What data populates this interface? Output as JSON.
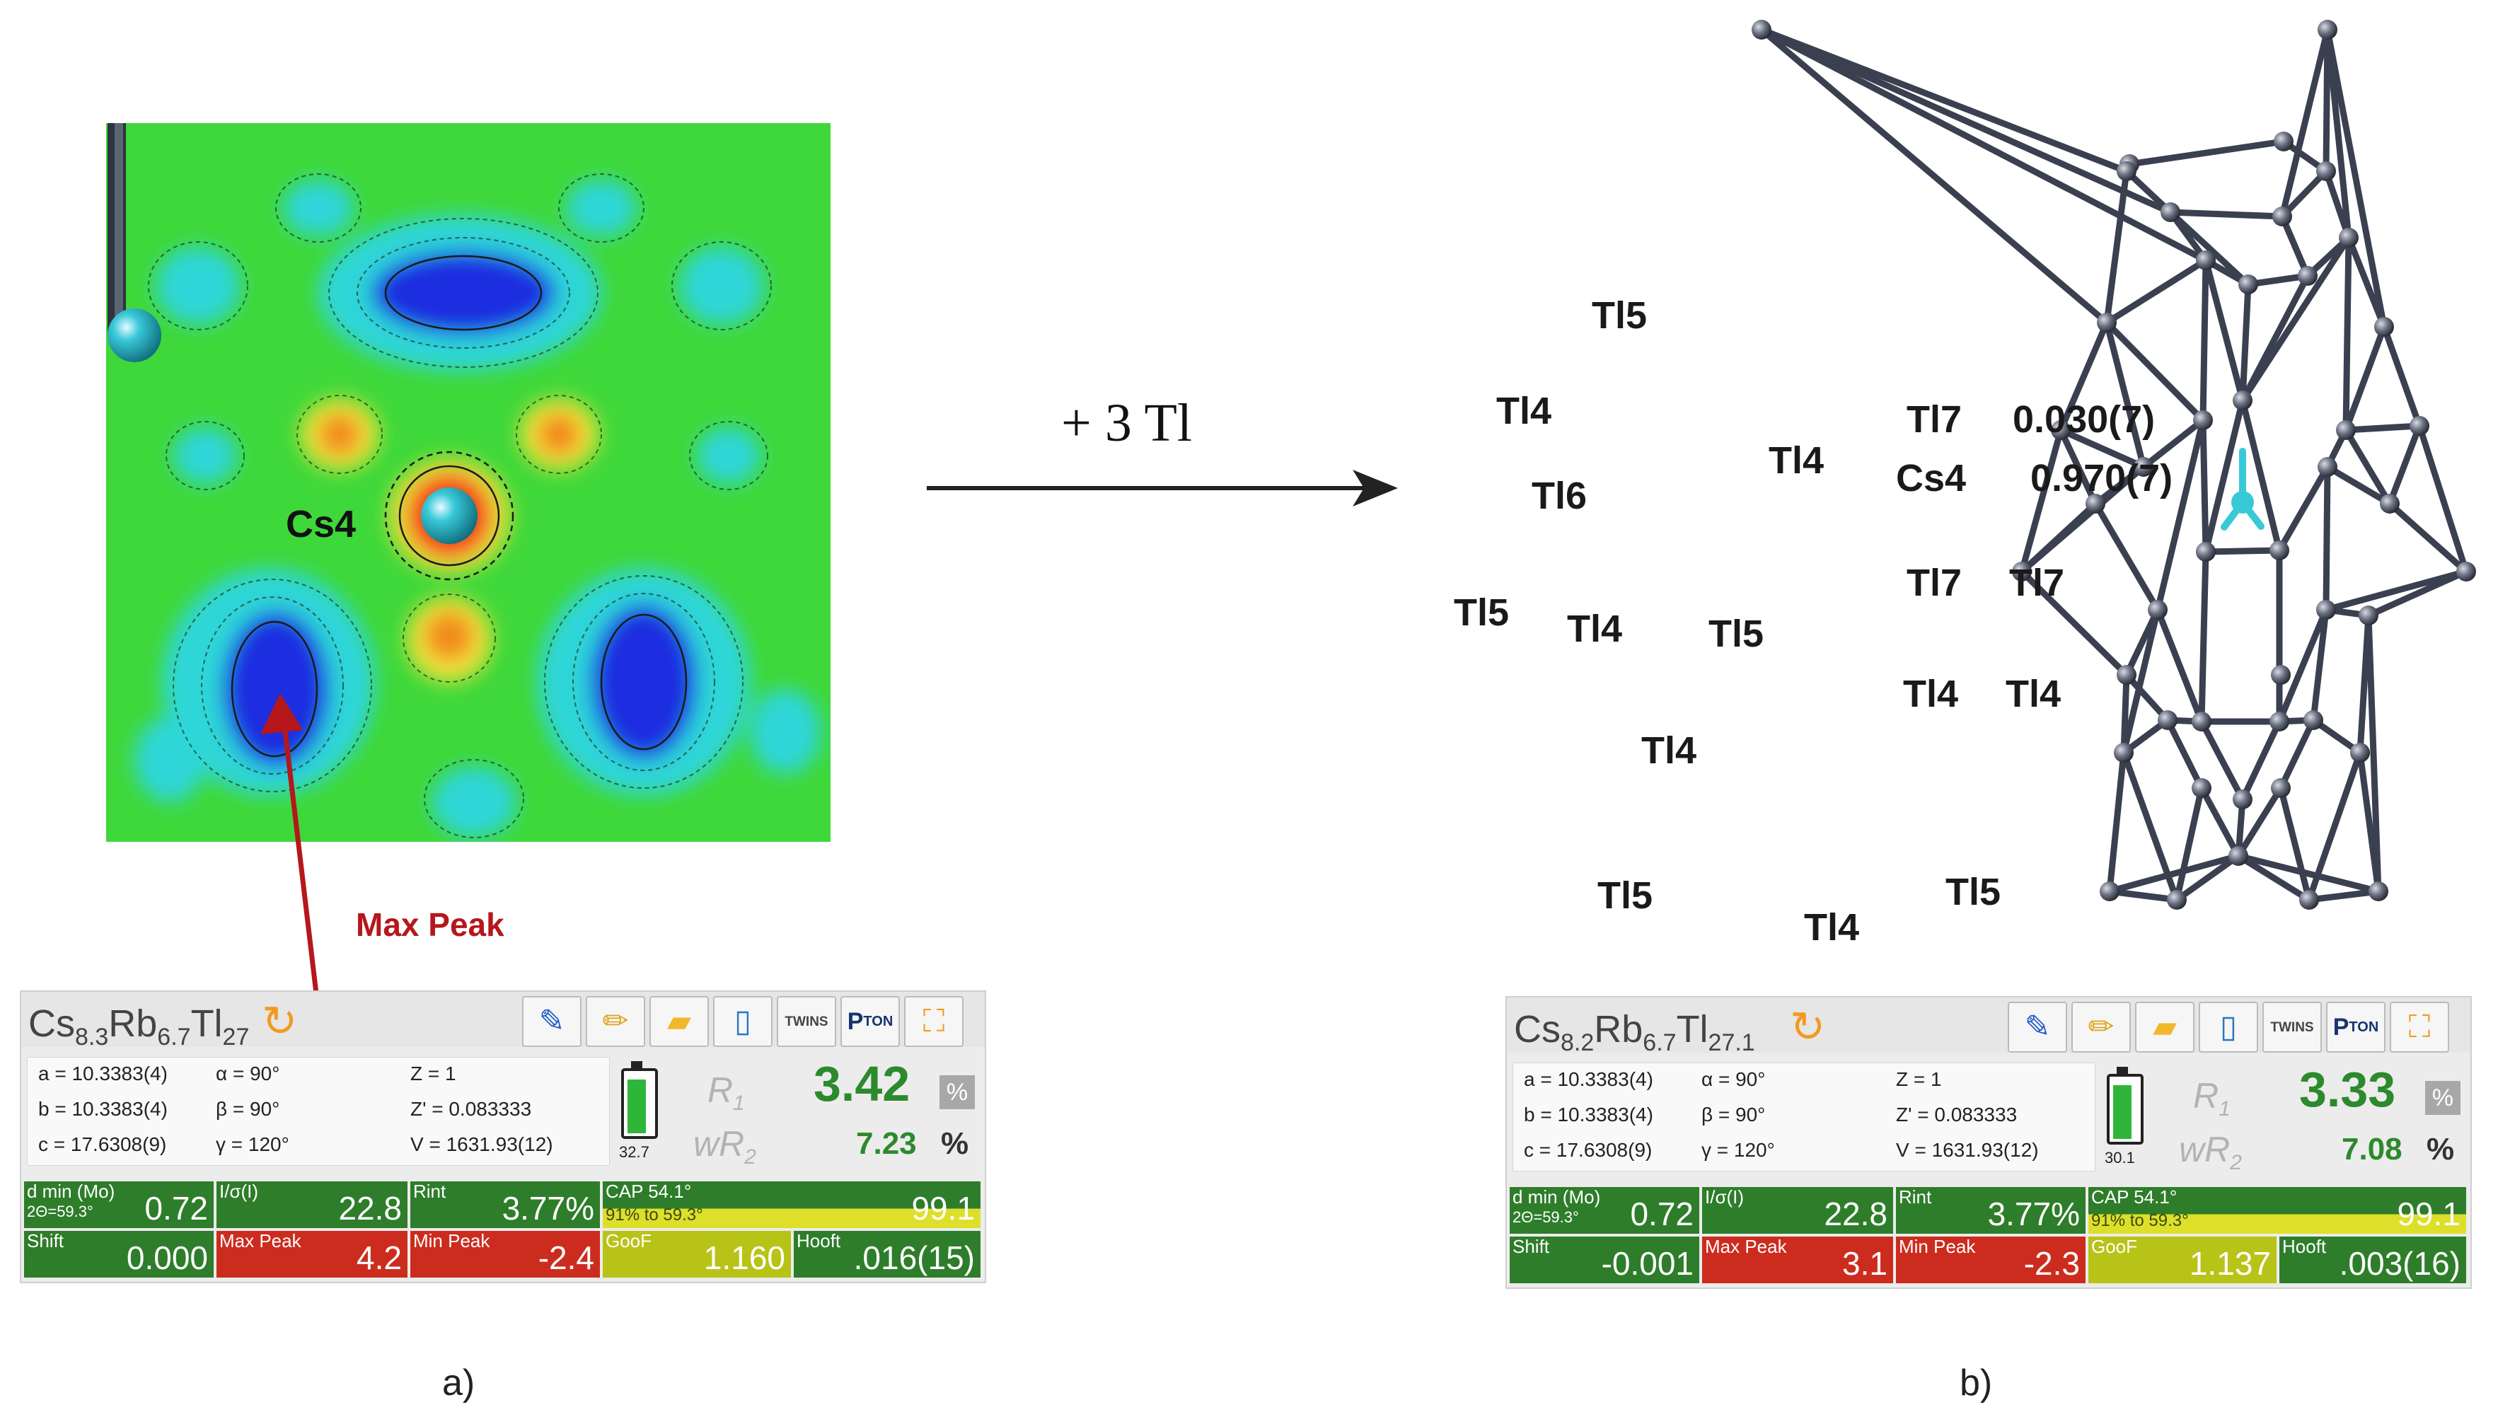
{
  "reaction": {
    "label": "+ 3 Tl"
  },
  "captions": {
    "a": "a)",
    "b": "b)"
  },
  "map": {
    "atom_label": "Cs4",
    "arrow_label": "Max Peak"
  },
  "cluster": {
    "labels": {
      "tl5_top": "Tl5",
      "tl4_left": "Tl4",
      "tl6": "Tl6",
      "tl5_left": "Tl5",
      "tl4_left2": "Tl4",
      "tl5_mid": "Tl5",
      "tl4_inner": "Tl4",
      "tl7_top": "Tl7",
      "occ_tl7": "0.030(7)",
      "cs4": "Cs4",
      "occ_cs4": "0.970(7)",
      "tl7_left": "Tl7",
      "tl7_right": "Tl7",
      "tl4_bl": "Tl4",
      "tl4_br": "Tl4",
      "tl4_lower": "Tl4",
      "tl5_bottom_left": "Tl5",
      "tl4_bottom": "Tl4",
      "tl5_bottom": "Tl5"
    }
  },
  "panels": {
    "a": {
      "formula": {
        "cs": "Cs",
        "cs_n": "8.3",
        "rb": "Rb",
        "rb_n": "6.7",
        "tl": "Tl",
        "tl_n": "27"
      },
      "toolbar": {
        "twins": "TWINS",
        "pton": "P",
        "pton_sub": "TON"
      },
      "cell": {
        "a": "a = 10.3383(4)",
        "b": "b = 10.3383(4)",
        "c": "c = 17.6308(9)",
        "alpha": "α = 90°",
        "beta": "β = 90°",
        "gamma": "γ = 120°",
        "z": "Z = 1",
        "zprime": "Z' = 0.083333",
        "v": "V = 1631.93(12)"
      },
      "battery_value": "32.7",
      "r1": {
        "label": "R",
        "sub": "1",
        "value": "3.42",
        "unit": "%"
      },
      "wr2": {
        "label": "wR",
        "sub": "2",
        "value": "7.23",
        "unit": "%"
      },
      "stats": {
        "dmin_k": "d min (Mo)",
        "dmin_k2": "2Θ=59.3°",
        "dmin_v": "0.72",
        "isig_k": "I/σ(I)",
        "isig_v": "22.8",
        "rint_k": "Rint",
        "rint_v": "3.77%",
        "cap_k": "CAP 54.1°",
        "cap_k2": "91% to 59.3°",
        "cap_v": "99.1",
        "shift_k": "Shift",
        "shift_v": "0.000",
        "maxpeak_k": "Max Peak",
        "maxpeak_v": "4.2",
        "minpeak_k": "Min Peak",
        "minpeak_v": "-2.4",
        "goof_k": "GooF",
        "goof_v": "1.160",
        "hooft_k": "Hooft",
        "hooft_v": ".016(15)"
      },
      "battery_level": 0.9
    },
    "b": {
      "formula": {
        "cs": "Cs",
        "cs_n": "8.2",
        "rb": "Rb",
        "rb_n": "6.7",
        "tl": "Tl",
        "tl_n": "27.1"
      },
      "toolbar": {
        "twins": "TWINS",
        "pton": "P",
        "pton_sub": "TON"
      },
      "cell": {
        "a": "a = 10.3383(4)",
        "b": "b = 10.3383(4)",
        "c": "c = 17.6308(9)",
        "alpha": "α = 90°",
        "beta": "β = 90°",
        "gamma": "γ = 120°",
        "z": "Z = 1",
        "zprime": "Z' = 0.083333",
        "v": "V = 1631.93(12)"
      },
      "battery_value": "30.1",
      "r1": {
        "label": "R",
        "sub": "1",
        "value": "3.33",
        "unit": "%"
      },
      "wr2": {
        "label": "wR",
        "sub": "2",
        "value": "7.08",
        "unit": "%"
      },
      "stats": {
        "dmin_k": "d min (Mo)",
        "dmin_k2": "2Θ=59.3°",
        "dmin_v": "0.72",
        "isig_k": "I/σ(I)",
        "isig_v": "22.8",
        "rint_k": "Rint",
        "rint_v": "3.77%",
        "cap_k": "CAP 54.1°",
        "cap_k2": "91% to 59.3°",
        "cap_v": "99.1",
        "shift_k": "Shift",
        "shift_v": "-0.001",
        "maxpeak_k": "Max Peak",
        "maxpeak_v": "3.1",
        "minpeak_k": "Min Peak",
        "minpeak_v": "-2.3",
        "goof_k": "GooF",
        "goof_v": "1.137",
        "hooft_k": "Hooft",
        "hooft_v": ".003(16)"
      },
      "battery_level": 0.9
    }
  },
  "colors": {
    "arrow_red": "#b5171b",
    "stat_green": "#2e7d2a",
    "stat_red": "#cc2c1e",
    "stat_yellow": "#b8c318",
    "atom_cyan": "#38c9d6"
  }
}
